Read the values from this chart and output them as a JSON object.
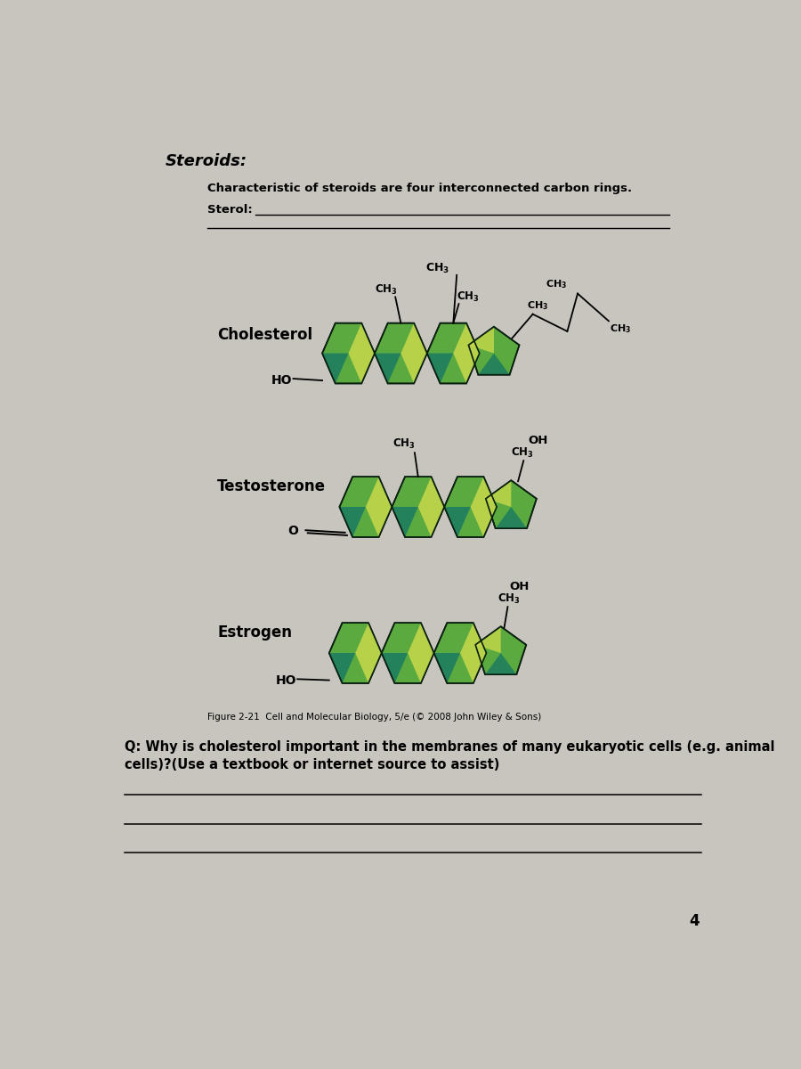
{
  "bg_color": "#c8c4be",
  "title_steroids": "Steroids:",
  "char_text": "Characteristic of steroids are four interconnected carbon rings.",
  "sterol_text": "Sterol:",
  "cholesterol_label": "Cholesterol",
  "testosterone_label": "Testosterone",
  "estrogen_label": "Estrogen",
  "figure_caption": "Figure 2-21  Cell and Molecular Biology, 5/e (© 2008 John Wiley & Sons)",
  "question_text": "Q: Why is cholesterol important in the membranes of many eukaryotic cells (e.g. animal\ncells)?(Use a textbook or internet source to assist)",
  "page_number": "4",
  "col_yg": "#c8d84a",
  "col_mg": "#5aaa40",
  "col_dg": "#1e6020",
  "col_teal": "#1a7a60",
  "col_edge": "#0a2010"
}
